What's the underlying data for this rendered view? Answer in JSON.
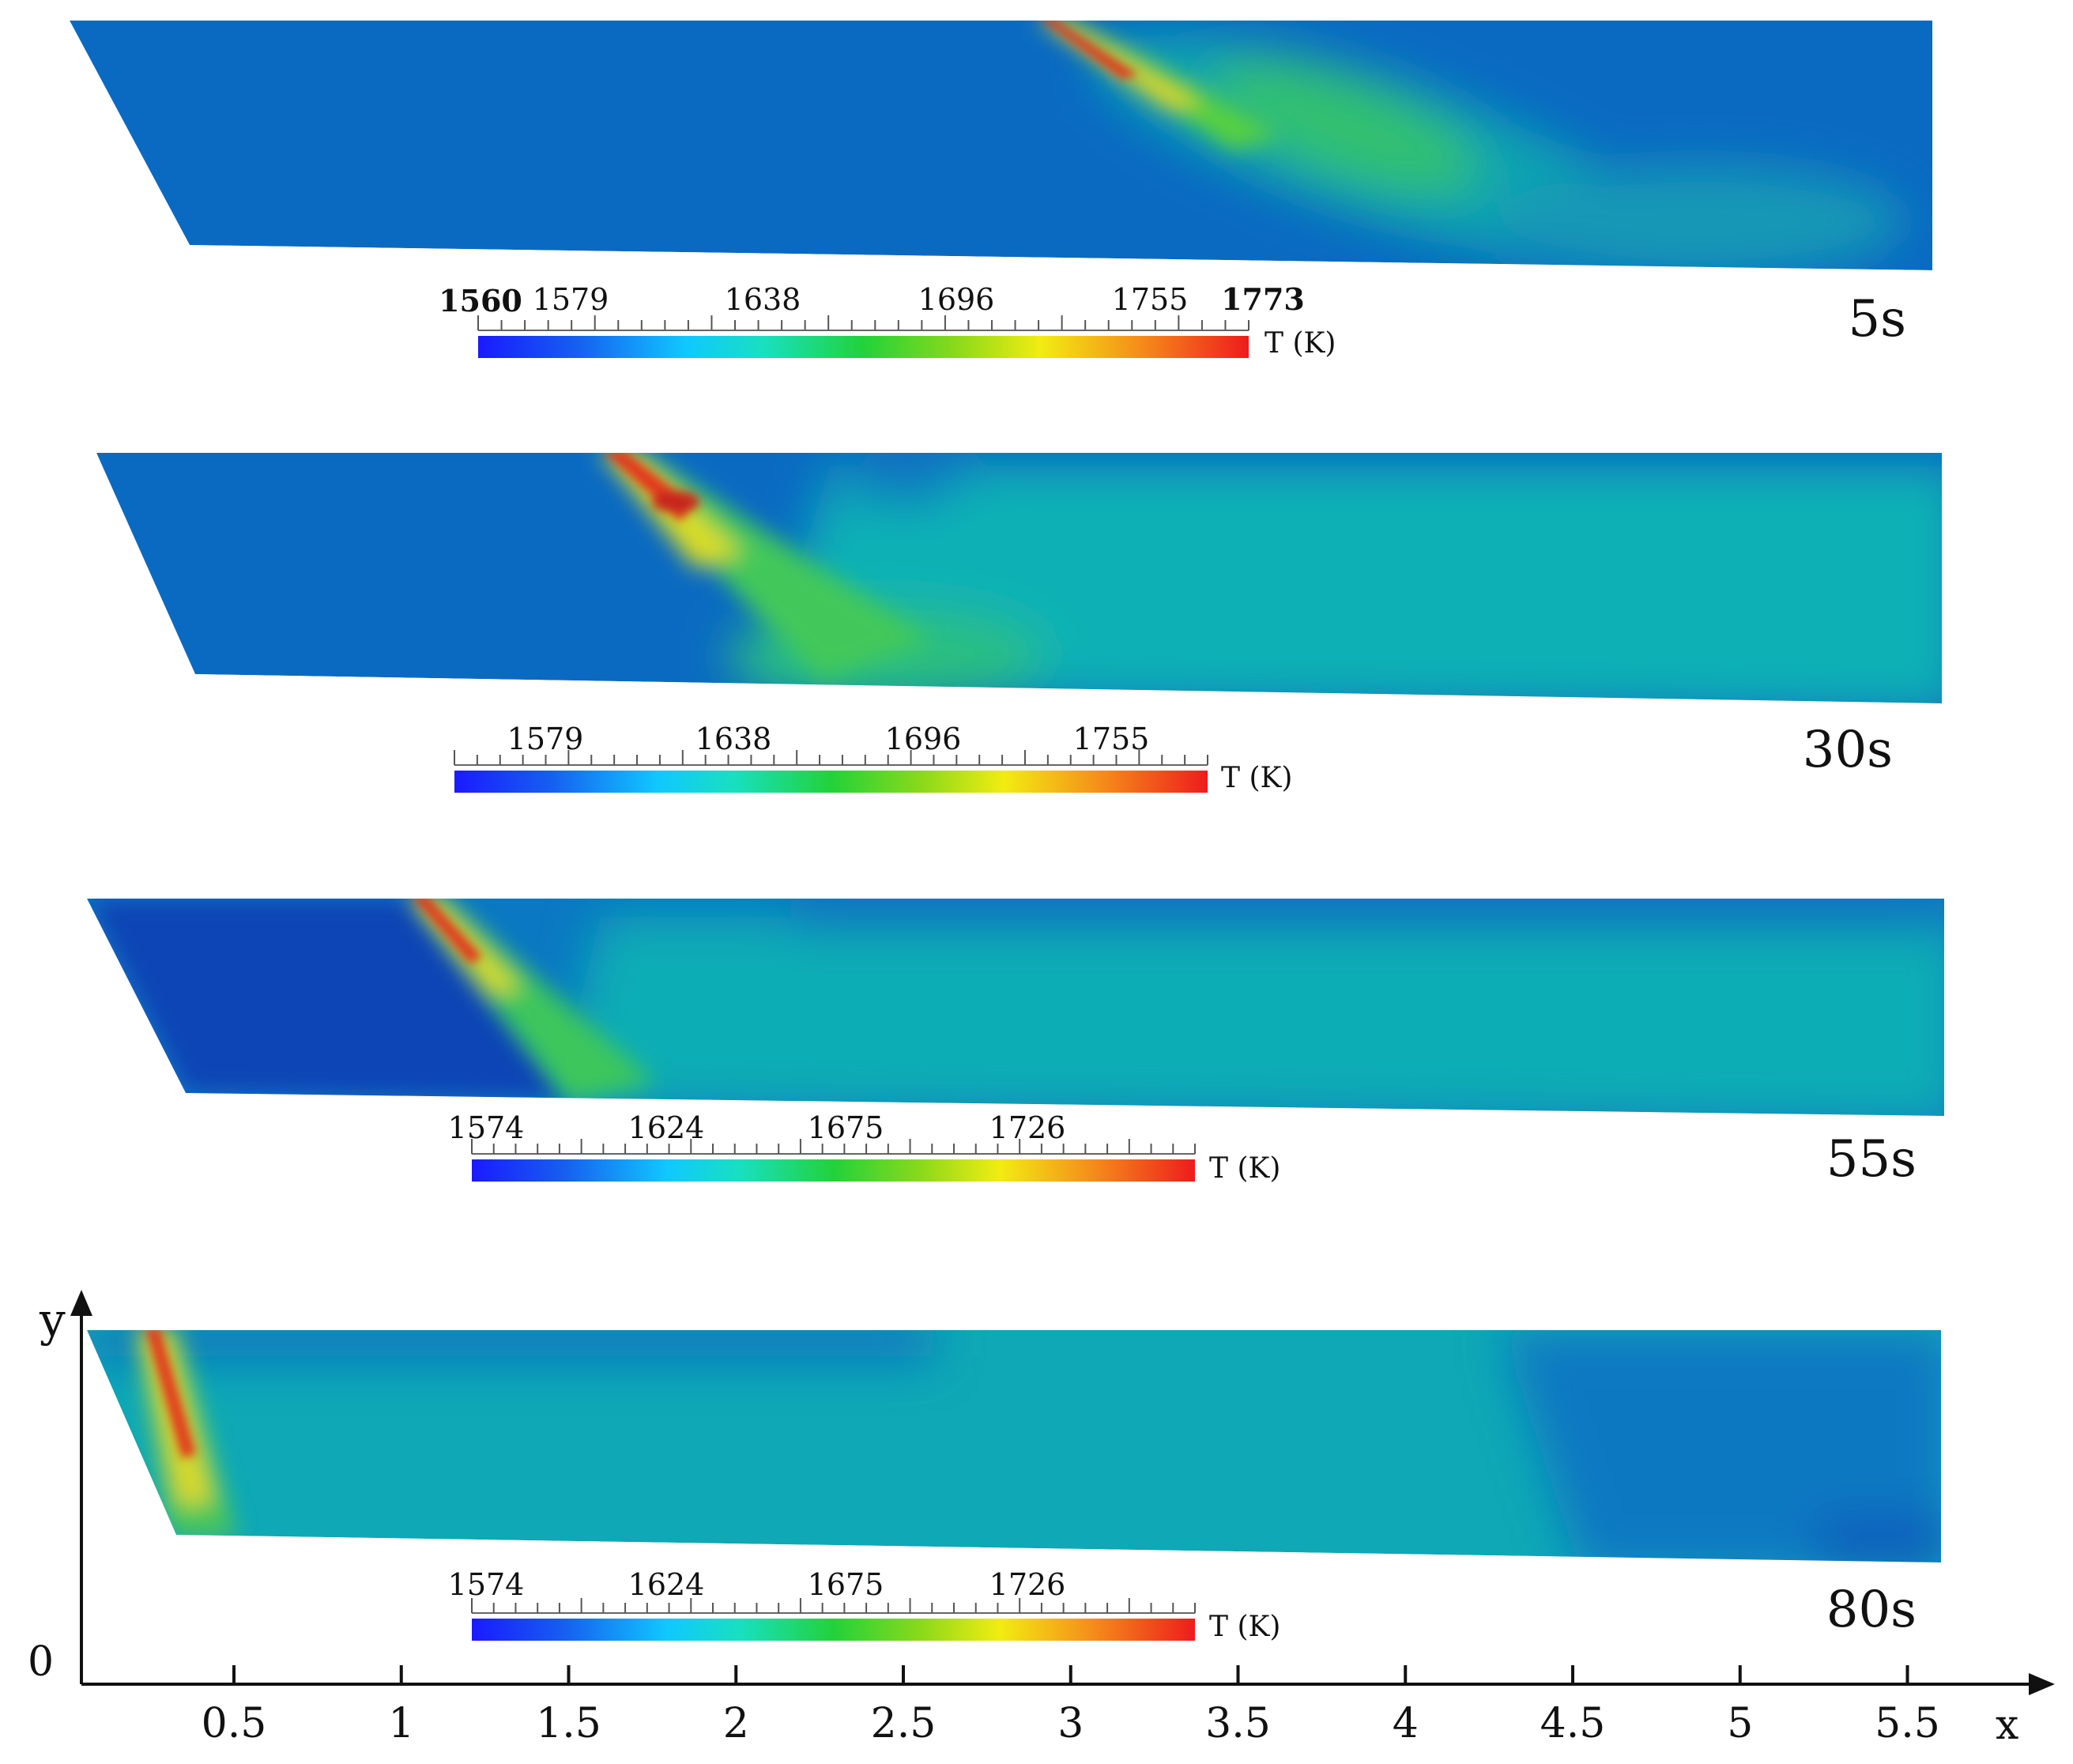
{
  "panels": [
    {
      "time_label": "5s",
      "colorbar": {
        "min_label": "1560",
        "max_label": "1773",
        "tick_labels": [
          "1579",
          "1638",
          "1696",
          "1755"
        ],
        "unit": "T (K)"
      }
    },
    {
      "time_label": "30s",
      "colorbar": {
        "tick_labels": [
          "1579",
          "1638",
          "1696",
          "1755"
        ],
        "unit": "T (K)"
      }
    },
    {
      "time_label": "55s",
      "colorbar": {
        "tick_labels": [
          "1574",
          "1624",
          "1675",
          "1726"
        ],
        "unit": "T (K)"
      }
    },
    {
      "time_label": "80s",
      "colorbar": {
        "tick_labels": [
          "1574",
          "1624",
          "1675",
          "1726"
        ],
        "unit": "T (K)"
      }
    }
  ],
  "axes": {
    "x_label": "x",
    "y_label": "y",
    "origin_label": "0",
    "x_ticks": [
      "0.5",
      "1",
      "1.5",
      "2",
      "2.5",
      "3",
      "3.5",
      "4",
      "4.5",
      "5",
      "5.5"
    ]
  },
  "colors": {
    "background_field": "#0a6ac2",
    "cool_zone": "#0b47b8",
    "warm_field": "#0eb1b5",
    "hot_core": "#e23a1e"
  }
}
